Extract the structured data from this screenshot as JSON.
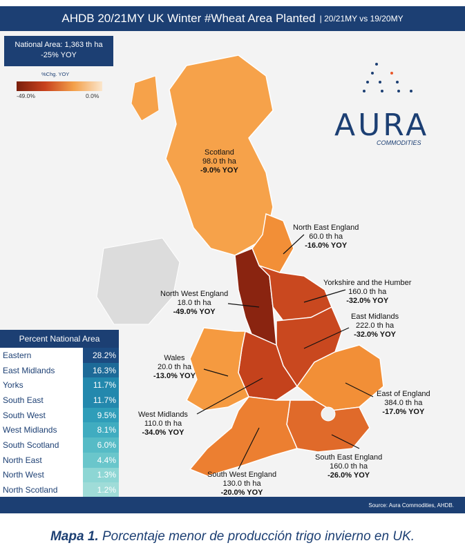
{
  "title": "AHDB 20/21MY UK Winter #Wheat Area Planted",
  "subtitle": "| 20/21MY vs 19/20MY",
  "national_area": {
    "line1": "National Area: 1,363 th ha",
    "line2": "-25% YOY"
  },
  "legend": {
    "title": "%Chg. YOY",
    "min": "-49.0%",
    "max": "0.0%"
  },
  "logo": {
    "name": "AURA",
    "sub": "COMMODITIES"
  },
  "regions": [
    {
      "name": "Scotland",
      "area": "98.0 th ha",
      "yoy": "-9.0% YOY",
      "color": "#f6a24a"
    },
    {
      "name": "North East England",
      "area": "60.0 th ha",
      "yoy": "-16.0% YOY",
      "color": "#f28f37"
    },
    {
      "name": "Yorkshire and the Humber",
      "area": "160.0 th ha",
      "yoy": "-32.0% YOY",
      "color": "#c9481f"
    },
    {
      "name": "North West England",
      "area": "18.0 th ha",
      "yoy": "-49.0% YOY",
      "color": "#8a2410"
    },
    {
      "name": "East Midlands",
      "area": "222.0 th ha",
      "yoy": "-32.0% YOY",
      "color": "#c9481f"
    },
    {
      "name": "Wales",
      "area": "20.0 th ha",
      "yoy": "-13.0% YOY",
      "color": "#f59a40"
    },
    {
      "name": "East of England",
      "area": "384.0 th ha",
      "yoy": "-17.0% YOY",
      "color": "#f28f37"
    },
    {
      "name": "West Midlands",
      "area": "110.0 th ha",
      "yoy": "-34.0% YOY",
      "color": "#c4421c"
    },
    {
      "name": "South East England",
      "area": "160.0 th ha",
      "yoy": "-26.0% YOY",
      "color": "#e06a2a"
    },
    {
      "name": "South West England",
      "area": "130.0 th ha",
      "yoy": "-20.0% YOY",
      "color": "#ec7f31"
    }
  ],
  "table": {
    "title": "Percent National Area",
    "rows": [
      {
        "name": "Eastern",
        "pct": "28.2%",
        "color": "#1c4a80"
      },
      {
        "name": "East Midlands",
        "pct": "16.3%",
        "color": "#1d6a98"
      },
      {
        "name": "Yorks",
        "pct": "11.7%",
        "color": "#2388ad"
      },
      {
        "name": "South East",
        "pct": "11.7%",
        "color": "#2388ad"
      },
      {
        "name": "South West",
        "pct": "9.5%",
        "color": "#2f9db9"
      },
      {
        "name": "West Midlands",
        "pct": "8.1%",
        "color": "#40acc0"
      },
      {
        "name": "South Scotland",
        "pct": "6.0%",
        "color": "#56bbc6"
      },
      {
        "name": "North East",
        "pct": "4.4%",
        "color": "#6ac6cb"
      },
      {
        "name": "North West",
        "pct": "1.3%",
        "color": "#8dd6d4"
      },
      {
        "name": "North Scotland",
        "pct": "1.2%",
        "color": "#9fdcd8"
      }
    ]
  },
  "source": "Source: Aura Commodities, AHDB.",
  "caption": {
    "bold": "Mapa 1.",
    "text": " Porcentaje menor de producción trigo invierno en UK."
  }
}
